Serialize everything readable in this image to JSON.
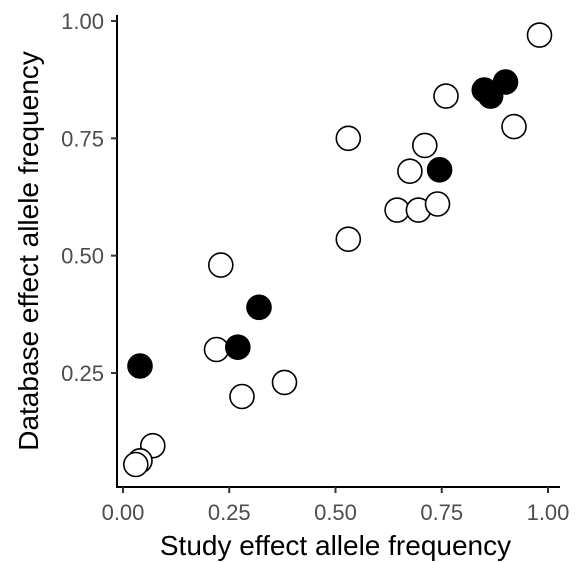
{
  "chart_data": {
    "type": "scatter",
    "title": "",
    "xlabel": "Study effect allele frequency",
    "ylabel": "Database effect allele frequency",
    "xlim": [
      0.0,
      1.0
    ],
    "ylim": [
      0.05,
      1.0
    ],
    "xticks": [
      0.0,
      0.25,
      0.5,
      0.75,
      1.0
    ],
    "xtick_labels": [
      "0.00",
      "0.25",
      "0.50",
      "0.75",
      "1.00"
    ],
    "yticks": [
      0.25,
      0.5,
      0.75,
      1.0
    ],
    "ytick_labels": [
      "0.25",
      "0.50",
      "0.75",
      "1.00"
    ],
    "grid": false,
    "legend": "none",
    "series": [
      {
        "marker": "open-circle",
        "color": "#000000",
        "fill": "#ffffff",
        "points": [
          {
            "x": 0.98,
            "y": 0.97
          },
          {
            "x": 0.76,
            "y": 0.84
          },
          {
            "x": 0.92,
            "y": 0.775
          },
          {
            "x": 0.53,
            "y": 0.75
          },
          {
            "x": 0.71,
            "y": 0.735
          },
          {
            "x": 0.675,
            "y": 0.68
          },
          {
            "x": 0.645,
            "y": 0.597
          },
          {
            "x": 0.695,
            "y": 0.597
          },
          {
            "x": 0.74,
            "y": 0.61
          },
          {
            "x": 0.53,
            "y": 0.535
          },
          {
            "x": 0.23,
            "y": 0.48
          },
          {
            "x": 0.22,
            "y": 0.3
          },
          {
            "x": 0.38,
            "y": 0.23
          },
          {
            "x": 0.28,
            "y": 0.2
          },
          {
            "x": 0.07,
            "y": 0.095
          },
          {
            "x": 0.04,
            "y": 0.063
          },
          {
            "x": 0.03,
            "y": 0.055
          }
        ]
      },
      {
        "marker": "filled-circle",
        "color": "#000000",
        "fill": "#000000",
        "points": [
          {
            "x": 0.9,
            "y": 0.87
          },
          {
            "x": 0.85,
            "y": 0.853
          },
          {
            "x": 0.865,
            "y": 0.84
          },
          {
            "x": 0.745,
            "y": 0.683
          },
          {
            "x": 0.32,
            "y": 0.39
          },
          {
            "x": 0.27,
            "y": 0.305
          },
          {
            "x": 0.04,
            "y": 0.265
          }
        ]
      }
    ]
  }
}
